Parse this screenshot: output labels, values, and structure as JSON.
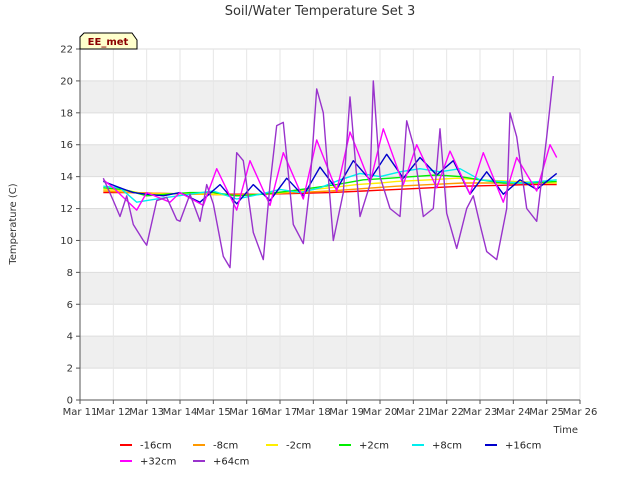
{
  "chart_data": {
    "type": "line",
    "title": "Soil/Water Temperature Set 3",
    "xlabel": "Time",
    "ylabel": "Temperature (C)",
    "site_label": "EE_met",
    "ylim": [
      0,
      22
    ],
    "yticks": [
      0,
      2,
      4,
      6,
      8,
      10,
      12,
      14,
      16,
      18,
      20,
      22
    ],
    "xlim": [
      11,
      26
    ],
    "xticks": [
      11,
      12,
      13,
      14,
      15,
      16,
      17,
      18,
      19,
      20,
      21,
      22,
      23,
      24,
      25,
      26
    ],
    "xtick_labels": [
      "Mar 11",
      "Mar 12",
      "Mar 13",
      "Mar 14",
      "Mar 15",
      "Mar 16",
      "Mar 17",
      "Mar 18",
      "Mar 19",
      "Mar 20",
      "Mar 21",
      "Mar 22",
      "Mar 23",
      "Mar 24",
      "Mar 25",
      "Mar 26"
    ],
    "x_unit": "day of March",
    "grid": "horizontal bands",
    "legend_position": "bottom",
    "series": [
      {
        "name": "-16cm",
        "color": "#ff0000",
        "x": [
          11.7,
          12.5,
          13.5,
          14.5,
          15.5,
          16.5,
          17.5,
          18.5,
          19.5,
          20.5,
          21.5,
          22.5,
          23.5,
          24.5,
          25.3
        ],
        "y": [
          13.0,
          13.0,
          12.95,
          12.9,
          12.9,
          12.9,
          12.95,
          13.0,
          13.1,
          13.2,
          13.3,
          13.4,
          13.45,
          13.5,
          13.5
        ]
      },
      {
        "name": "-8cm",
        "color": "#ff9900",
        "x": [
          11.7,
          12.5,
          13.5,
          14.5,
          15.5,
          16.5,
          17.5,
          18.5,
          19.5,
          20.5,
          21.5,
          22.5,
          23.5,
          24.5,
          25.3
        ],
        "y": [
          13.1,
          13.0,
          12.95,
          12.9,
          12.85,
          12.9,
          13.0,
          13.1,
          13.25,
          13.4,
          13.5,
          13.6,
          13.6,
          13.6,
          13.6
        ]
      },
      {
        "name": "-2cm",
        "color": "#ffee00",
        "x": [
          11.7,
          12.5,
          13.0,
          14.0,
          15.0,
          15.7,
          16.5,
          17.5,
          18.5,
          19.3,
          20.0,
          20.5,
          21.5,
          22.3,
          23.0,
          24.0,
          25.3
        ],
        "y": [
          13.2,
          13.1,
          12.9,
          12.95,
          12.9,
          12.8,
          12.9,
          13.1,
          13.3,
          13.5,
          13.6,
          13.7,
          13.8,
          13.9,
          13.8,
          13.7,
          13.6
        ]
      },
      {
        "name": "+2cm",
        "color": "#00ee00",
        "x": [
          11.7,
          12.3,
          13.0,
          13.6,
          14.3,
          15.0,
          15.7,
          16.5,
          17.3,
          18.0,
          18.7,
          19.5,
          20.3,
          21.0,
          21.7,
          22.4,
          23.0,
          23.7,
          24.5,
          25.3
        ],
        "y": [
          13.3,
          13.2,
          12.8,
          12.9,
          13.0,
          13.0,
          12.8,
          12.9,
          13.1,
          13.3,
          13.5,
          13.8,
          13.9,
          14.0,
          14.1,
          14.0,
          13.8,
          13.6,
          13.6,
          13.7
        ]
      },
      {
        "name": "+8cm",
        "color": "#00eeee",
        "x": [
          11.7,
          12.2,
          12.7,
          13.0,
          13.6,
          14.3,
          15.0,
          15.7,
          16.4,
          17.0,
          17.6,
          18.2,
          18.8,
          19.4,
          20.0,
          20.6,
          21.2,
          21.8,
          22.4,
          23.0,
          23.6,
          24.2,
          24.8,
          25.3
        ],
        "y": [
          13.4,
          13.3,
          12.4,
          12.5,
          12.7,
          12.9,
          13.1,
          12.6,
          12.9,
          13.2,
          13.0,
          13.3,
          13.8,
          14.2,
          14.0,
          14.3,
          14.5,
          14.3,
          14.5,
          13.8,
          13.7,
          13.6,
          13.7,
          13.8
        ]
      },
      {
        "name": "+16cm",
        "color": "#0000cc",
        "x": [
          11.7,
          12.2,
          12.6,
          13.0,
          13.5,
          14.0,
          14.6,
          15.2,
          15.7,
          16.2,
          16.7,
          17.2,
          17.7,
          18.2,
          18.7,
          19.2,
          19.7,
          20.2,
          20.7,
          21.2,
          21.7,
          22.2,
          22.7,
          23.2,
          23.7,
          24.2,
          24.7,
          25.0,
          25.3
        ],
        "y": [
          13.7,
          13.3,
          13.0,
          12.9,
          12.8,
          13.0,
          12.4,
          13.5,
          12.3,
          13.5,
          12.5,
          13.9,
          12.8,
          14.6,
          13.2,
          15.0,
          13.8,
          15.4,
          13.9,
          15.2,
          14.1,
          15.0,
          12.9,
          14.3,
          12.9,
          13.8,
          13.2,
          13.7,
          14.2
        ]
      },
      {
        "name": "+32cm",
        "color": "#ff00ff",
        "x": [
          11.7,
          12.0,
          12.7,
          13.0,
          13.7,
          14.0,
          14.7,
          15.1,
          15.7,
          16.1,
          16.7,
          17.1,
          17.7,
          18.1,
          18.7,
          19.1,
          19.7,
          20.1,
          20.7,
          21.1,
          21.7,
          22.1,
          22.7,
          23.1,
          23.7,
          24.1,
          24.7,
          25.1,
          25.3
        ],
        "y": [
          13.8,
          13.3,
          11.9,
          13.0,
          12.4,
          13.0,
          12.2,
          14.5,
          11.9,
          15.0,
          12.2,
          15.5,
          12.6,
          16.3,
          13.1,
          16.8,
          13.6,
          17.0,
          13.5,
          16.0,
          13.3,
          15.6,
          12.9,
          15.5,
          12.4,
          15.2,
          13.1,
          16.0,
          15.2
        ]
      },
      {
        "name": "+64cm",
        "color": "#9933cc",
        "x": [
          11.7,
          12.0,
          12.2,
          12.4,
          12.6,
          12.9,
          13.0,
          13.3,
          13.6,
          13.9,
          14.0,
          14.3,
          14.6,
          14.8,
          15.0,
          15.3,
          15.5,
          15.7,
          15.9,
          16.2,
          16.5,
          16.7,
          16.9,
          17.1,
          17.4,
          17.7,
          17.9,
          18.1,
          18.3,
          18.6,
          18.9,
          19.1,
          19.4,
          19.7,
          19.8,
          20.0,
          20.3,
          20.6,
          20.8,
          21.0,
          21.3,
          21.6,
          21.8,
          22.0,
          22.3,
          22.6,
          22.8,
          23.0,
          23.2,
          23.5,
          23.8,
          23.9,
          24.1,
          24.4,
          24.7,
          25.0,
          25.2
        ],
        "y": [
          13.9,
          12.5,
          11.5,
          12.8,
          11.0,
          10.0,
          9.7,
          12.5,
          12.7,
          11.3,
          11.2,
          12.9,
          11.2,
          13.5,
          12.3,
          9.0,
          8.3,
          15.5,
          15.0,
          10.5,
          8.8,
          13.5,
          17.2,
          17.4,
          11.0,
          9.8,
          13.5,
          19.5,
          18.0,
          10.0,
          13.0,
          19.0,
          11.5,
          13.5,
          20.0,
          14.0,
          12.0,
          11.5,
          17.5,
          16.0,
          11.5,
          12.0,
          17.0,
          11.7,
          9.5,
          12.0,
          12.8,
          11.0,
          9.3,
          8.8,
          12.0,
          18.0,
          16.5,
          12.0,
          11.2,
          16.5,
          20.3
        ]
      }
    ]
  }
}
